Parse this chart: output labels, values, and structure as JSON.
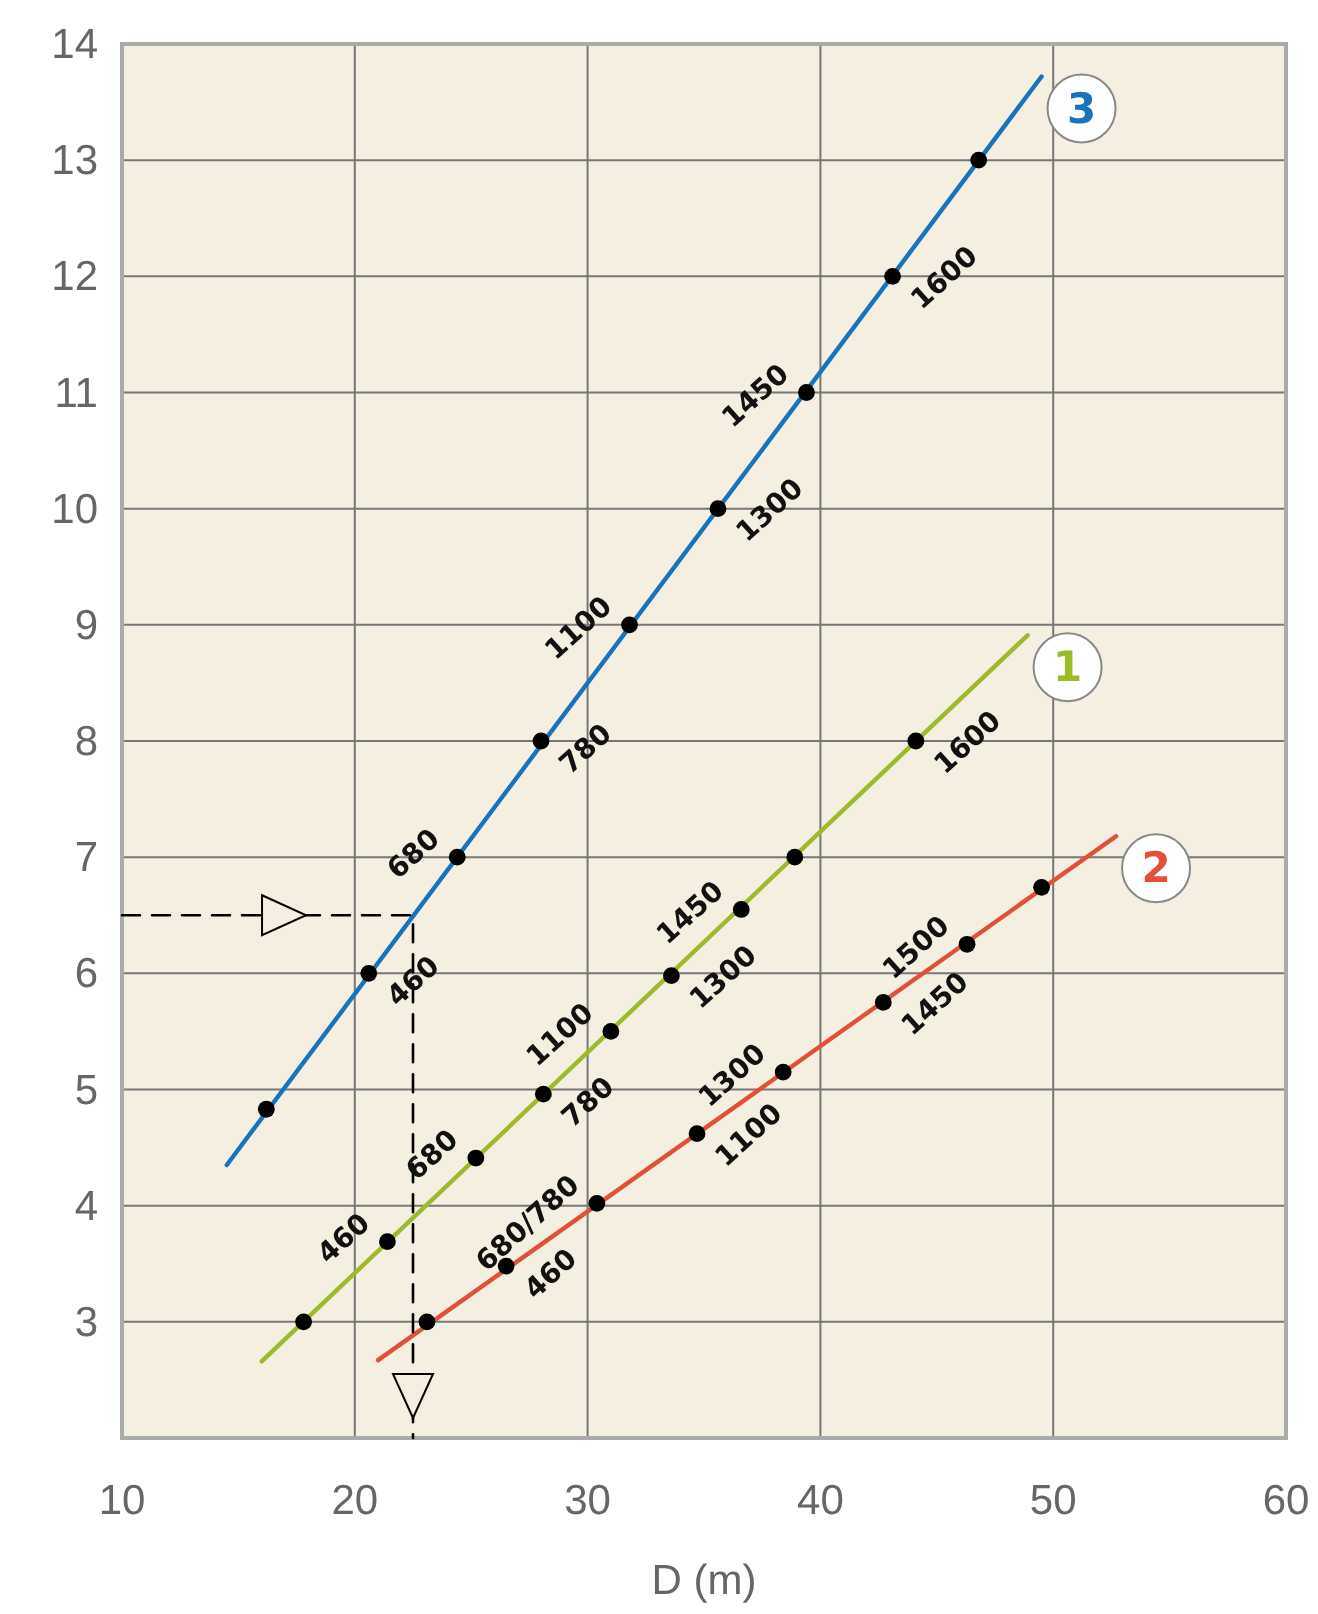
{
  "chart_data": {
    "type": "line",
    "xlabel": "D (m)",
    "xlim": [
      10,
      60
    ],
    "xticks": [
      10,
      20,
      30,
      40,
      50,
      60
    ],
    "ylim": [
      2,
      14
    ],
    "yticks": [
      3,
      4,
      5,
      6,
      7,
      8,
      9,
      10,
      11,
      12,
      13,
      14
    ],
    "grid": true,
    "legend": false,
    "series": [
      {
        "name": "3",
        "color": "#1a72bb",
        "marker": "none",
        "x": [
          14.5,
          49.5
        ],
        "values": [
          4.35,
          13.72
        ]
      },
      {
        "name": "1",
        "color": "#9bbb2a",
        "marker": "none",
        "x": [
          16.0,
          48.9
        ],
        "values": [
          2.66,
          8.91
        ]
      },
      {
        "name": "2",
        "color": "#e2503a",
        "marker": "none",
        "x": [
          21.0,
          52.7
        ],
        "values": [
          2.67,
          7.18
        ]
      },
      {
        "type": "scatter",
        "color": "#000000",
        "marker": "circle",
        "x": [
          16.2,
          20.6,
          24.4,
          28.0,
          31.8,
          35.6,
          39.4,
          43.1,
          46.8
        ],
        "values": [
          4.83,
          6.0,
          7.0,
          8.0,
          9.0,
          10.0,
          11.0,
          12.0,
          13.0
        ]
      },
      {
        "type": "scatter",
        "color": "#000000",
        "marker": "circle",
        "x": [
          17.8,
          21.4,
          25.2,
          28.1,
          31.0,
          33.6,
          36.6,
          38.9,
          44.1
        ],
        "values": [
          3.0,
          3.69,
          4.41,
          4.96,
          5.5,
          5.98,
          6.55,
          7.0,
          8.0
        ]
      },
      {
        "type": "scatter",
        "color": "#000000",
        "marker": "circle",
        "x": [
          23.1,
          26.5,
          30.4,
          34.7,
          38.4,
          42.7,
          46.3,
          49.5
        ],
        "values": [
          3.0,
          3.48,
          4.02,
          4.62,
          5.15,
          5.75,
          6.25,
          6.74
        ]
      },
      {
        "color": "#000000",
        "marker": "none",
        "line_style": "dashed",
        "x": [
          10,
          22.5,
          22.5
        ],
        "values": [
          6.5,
          6.5,
          2
        ]
      }
    ],
    "annotations": [
      {
        "text": "680",
        "x": 24.4,
        "y": 7.0
      },
      {
        "text": "460",
        "x": 20.6,
        "y": 6.0
      },
      {
        "text": "1100",
        "x": 31.8,
        "y": 9.0
      },
      {
        "text": "780",
        "x": 28.0,
        "y": 8.0
      },
      {
        "text": "1450",
        "x": 39.4,
        "y": 11.0
      },
      {
        "text": "1300",
        "x": 35.6,
        "y": 10.0
      },
      {
        "text": "460",
        "x": 21.4,
        "y": 3.69
      },
      {
        "text": "1600",
        "x": 43.1,
        "y": 12.0
      },
      {
        "text": "680",
        "x": 25.2,
        "y": 4.41
      },
      {
        "text": "780",
        "x": 28.1,
        "y": 4.96
      },
      {
        "text": "1100",
        "x": 31.0,
        "y": 5.5
      },
      {
        "text": "1300",
        "x": 33.6,
        "y": 5.98
      },
      {
        "text": "1450",
        "x": 36.6,
        "y": 6.55
      },
      {
        "text": "460",
        "x": 26.5,
        "y": 3.48
      },
      {
        "text": "680/780",
        "x": 30.4,
        "y": 4.02
      },
      {
        "text": "1100",
        "x": 34.7,
        "y": 4.62
      },
      {
        "text": "1300",
        "x": 38.4,
        "y": 5.15
      },
      {
        "text": "1450",
        "x": 42.7,
        "y": 5.75
      },
      {
        "text": "1500",
        "x": 46.3,
        "y": 6.25
      },
      {
        "text": "1600",
        "x": 44.1,
        "y": 8.0
      }
    ]
  }
}
